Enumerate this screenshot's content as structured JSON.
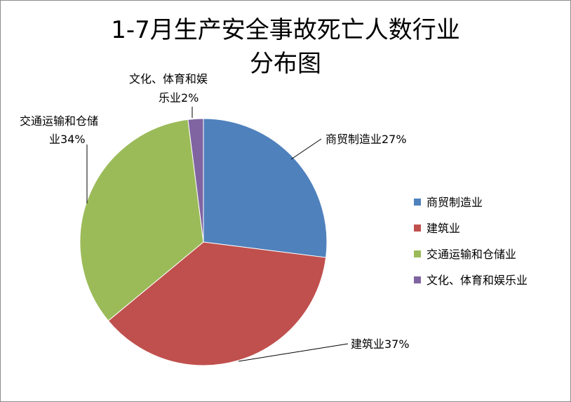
{
  "chart_data": {
    "type": "pie",
    "title_line1": "1-7月生产安全事故死亡人数行业",
    "title_line2": "分布图",
    "categories": [
      "商贸制造业",
      "建筑业",
      "交通运输和仓储业",
      "文化、体育和娱乐业"
    ],
    "values": [
      27,
      37,
      34,
      2
    ],
    "unit": "%",
    "colors": [
      "#4f81bd",
      "#c0504d",
      "#9bbb59",
      "#8064a2"
    ],
    "data_labels": {
      "trade": "商贸制造业27%",
      "construction": "建筑业37%",
      "transport_line1": "交通运输和仓储",
      "transport_line2": "业34%",
      "culture_line1": "文化、体育和娱",
      "culture_line2": "乐业2%"
    },
    "legend_position": "right"
  }
}
